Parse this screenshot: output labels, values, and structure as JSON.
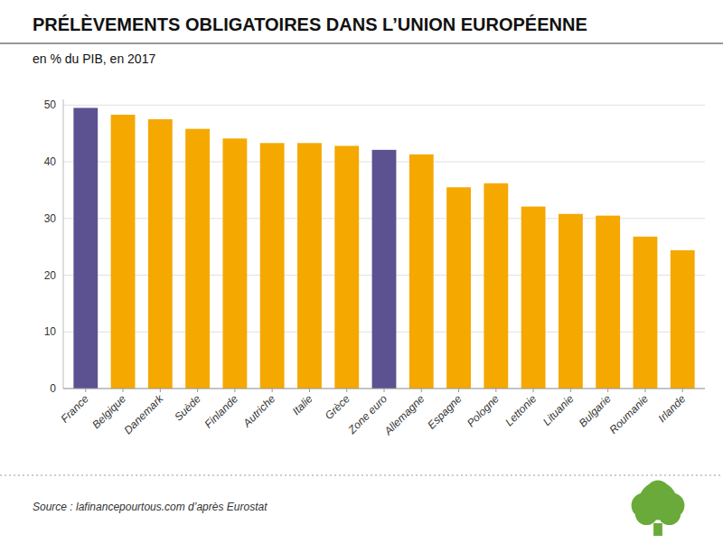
{
  "chart_data": {
    "type": "bar",
    "title": "PRÉLÈVEMENTS OBLIGATOIRES DANS L’UNION EUROPÉENNE",
    "subtitle": "en % du PIB, en 2017",
    "source": "Source : lafinancepourtous.com d’après Eurostat",
    "categories": [
      "France",
      "Belgique",
      "Danemark",
      "Suède",
      "Finlande",
      "Autriche",
      "Italie",
      "Grèce",
      "Zone euro",
      "Allemagne",
      "Espagne",
      "Pologne",
      "Lettonie",
      "Lituanie",
      "Bulgarie",
      "Roumanie",
      "Irlande"
    ],
    "values": [
      49.5,
      48.3,
      47.5,
      45.8,
      44.1,
      43.3,
      43.3,
      42.8,
      42.1,
      41.3,
      35.5,
      36.2,
      32.1,
      30.8,
      30.5,
      26.8,
      24.4
    ],
    "colors": [
      "#5c5291",
      "#f5a800",
      "#f5a800",
      "#f5a800",
      "#f5a800",
      "#f5a800",
      "#f5a800",
      "#f5a800",
      "#5c5291",
      "#f5a800",
      "#f5a800",
      "#f5a800",
      "#f5a800",
      "#f5a800",
      "#f5a800",
      "#f5a800",
      "#f5a800"
    ],
    "ylim": [
      0,
      51
    ],
    "yticks": [
      0,
      10,
      20,
      30,
      40,
      50
    ],
    "grid": true
  }
}
